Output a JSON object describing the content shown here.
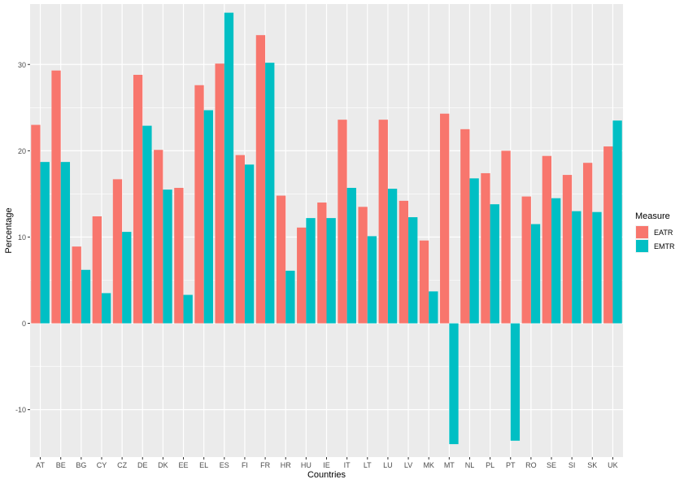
{
  "chart_data": {
    "type": "bar",
    "title": "",
    "xlabel": "Countries",
    "ylabel": "Percentage",
    "ylim": [
      -15.5,
      37
    ],
    "yticks": [
      -10,
      0,
      10,
      20,
      30
    ],
    "grid": true,
    "legend_position": "right",
    "legend_title": "Measure",
    "categories": [
      "AT",
      "BE",
      "BG",
      "CY",
      "CZ",
      "DE",
      "DK",
      "EE",
      "EL",
      "ES",
      "FI",
      "FR",
      "HR",
      "HU",
      "IE",
      "IT",
      "LT",
      "LU",
      "LV",
      "MK",
      "MT",
      "NL",
      "PL",
      "PT",
      "RO",
      "SE",
      "SI",
      "SK",
      "UK"
    ],
    "series": [
      {
        "name": "EATR",
        "color": "#F8766D",
        "values": [
          23.0,
          29.3,
          8.9,
          12.4,
          16.7,
          28.8,
          20.1,
          15.7,
          27.6,
          30.1,
          19.5,
          33.4,
          14.8,
          11.1,
          14.0,
          23.6,
          13.5,
          23.6,
          14.2,
          9.6,
          24.3,
          22.5,
          17.4,
          20.0,
          14.7,
          19.4,
          17.2,
          18.6,
          20.5
        ]
      },
      {
        "name": "EMTR",
        "color": "#00BFC4",
        "values": [
          18.7,
          18.7,
          6.2,
          3.5,
          10.6,
          22.9,
          15.5,
          3.3,
          24.7,
          36.0,
          18.4,
          30.2,
          6.1,
          12.2,
          12.2,
          15.7,
          10.1,
          15.6,
          12.3,
          3.7,
          -14.0,
          16.8,
          13.8,
          -13.6,
          11.5,
          14.5,
          13.0,
          12.9,
          23.5
        ]
      }
    ]
  }
}
